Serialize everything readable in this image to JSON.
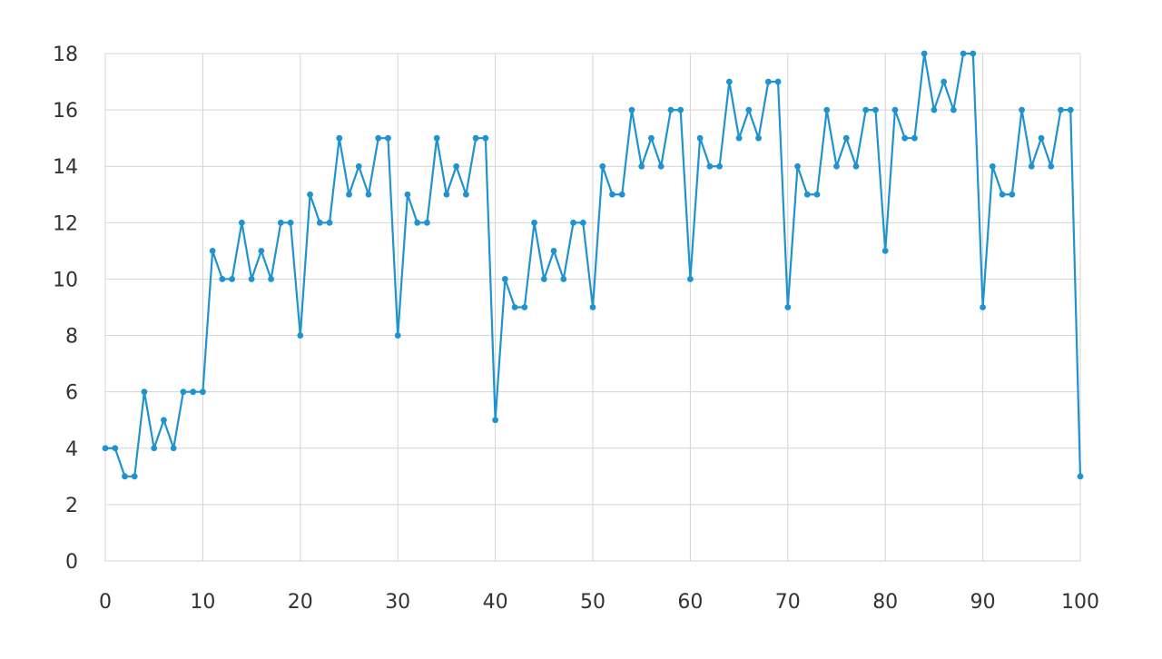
{
  "chart_data": {
    "type": "line",
    "x": [
      0,
      1,
      2,
      3,
      4,
      5,
      6,
      7,
      8,
      9,
      10,
      11,
      12,
      13,
      14,
      15,
      16,
      17,
      18,
      19,
      20,
      21,
      22,
      23,
      24,
      25,
      26,
      27,
      28,
      29,
      30,
      31,
      32,
      33,
      34,
      35,
      36,
      37,
      38,
      39,
      40,
      41,
      42,
      43,
      44,
      45,
      46,
      47,
      48,
      49,
      50,
      51,
      52,
      53,
      54,
      55,
      56,
      57,
      58,
      59,
      60,
      61,
      62,
      63,
      64,
      65,
      66,
      67,
      68,
      69,
      70,
      71,
      72,
      73,
      74,
      75,
      76,
      77,
      78,
      79,
      80,
      81,
      82,
      83,
      84,
      85,
      86,
      87,
      88,
      89,
      90,
      91,
      92,
      93,
      94,
      95,
      96,
      97,
      98,
      99,
      100
    ],
    "series": [
      {
        "values": [
          4,
          4,
          3,
          3,
          6,
          4,
          5,
          4,
          6,
          6,
          6,
          11,
          10,
          10,
          12,
          10,
          11,
          10,
          12,
          12,
          8,
          13,
          12,
          12,
          15,
          13,
          14,
          13,
          15,
          15,
          8,
          13,
          12,
          12,
          15,
          13,
          14,
          13,
          15,
          15,
          5,
          10,
          9,
          9,
          12,
          10,
          11,
          10,
          12,
          12,
          9,
          14,
          13,
          13,
          16,
          14,
          15,
          14,
          16,
          16,
          10,
          15,
          14,
          14,
          17,
          15,
          16,
          15,
          17,
          17,
          9,
          14,
          13,
          13,
          16,
          14,
          15,
          14,
          16,
          16,
          11,
          16,
          15,
          15,
          18,
          16,
          17,
          16,
          18,
          18,
          9,
          14,
          13,
          13,
          16,
          14,
          15,
          14,
          16,
          16,
          3
        ],
        "color": "#1f93cf"
      }
    ],
    "title": "",
    "xlabel": "",
    "ylabel": "",
    "xlim": [
      0,
      100
    ],
    "ylim": [
      0,
      18
    ],
    "x_ticks": [
      "0",
      "10",
      "20",
      "30",
      "40",
      "50",
      "60",
      "70",
      "80",
      "90",
      "100"
    ],
    "y_ticks": [
      "0",
      "2",
      "4",
      "6",
      "8",
      "10",
      "12",
      "14",
      "16",
      "18"
    ],
    "grid": true
  }
}
